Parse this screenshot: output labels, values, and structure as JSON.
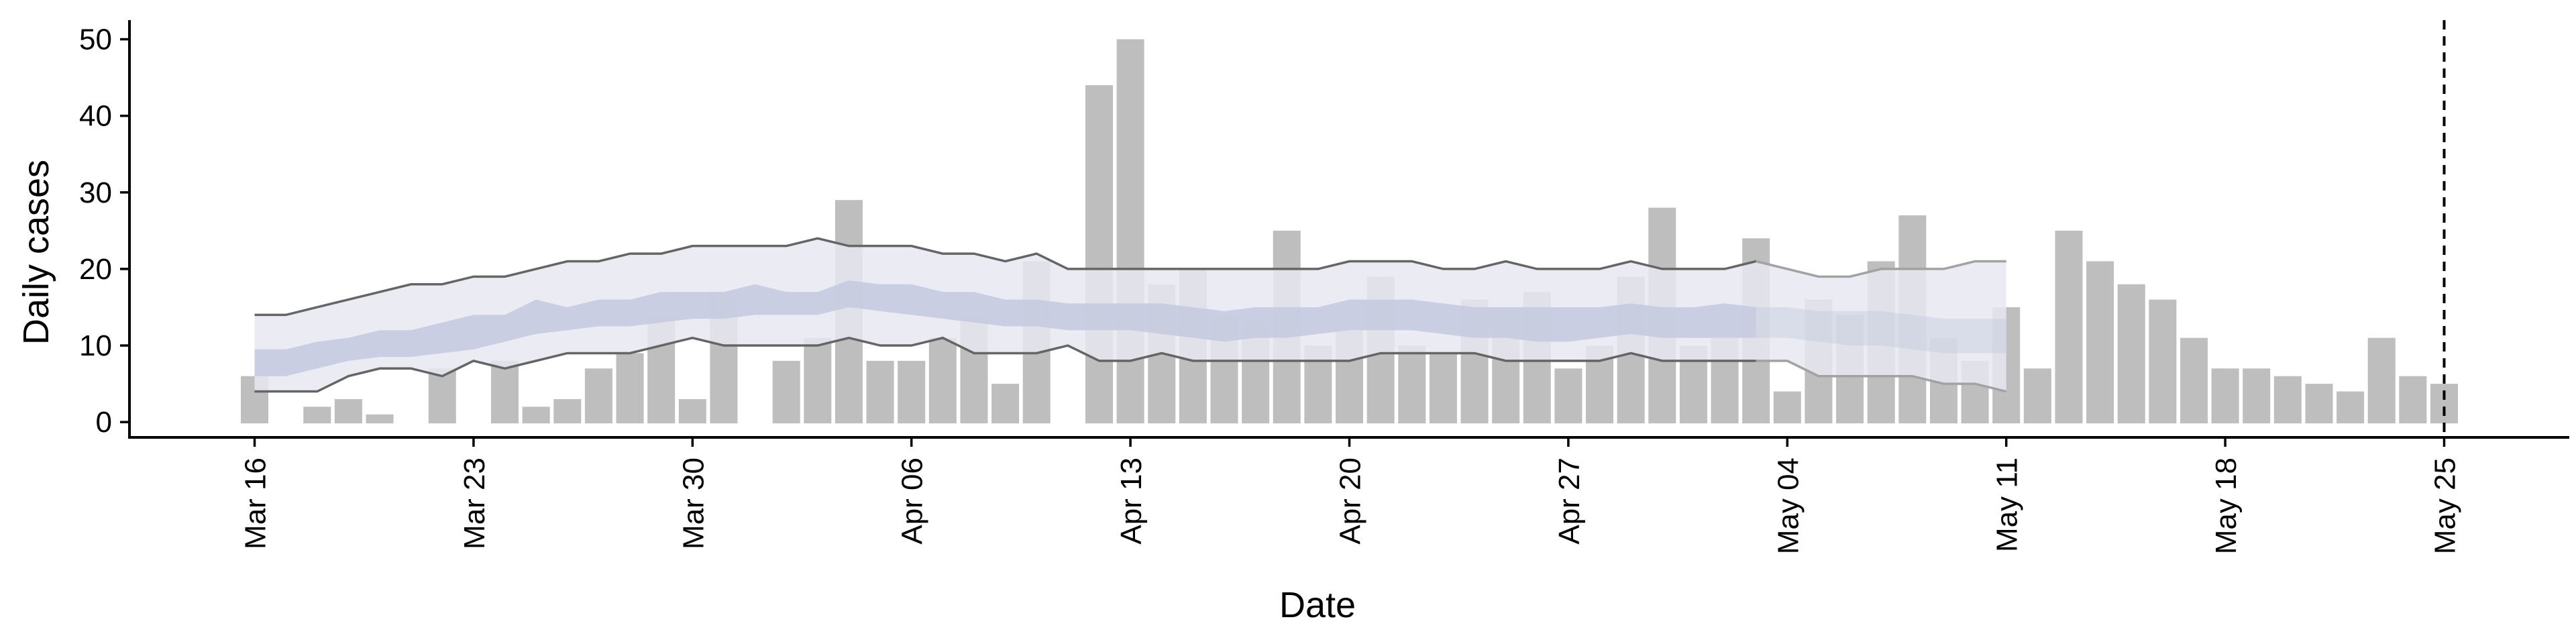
{
  "chart_data": {
    "type": "bar",
    "xlabel": "Date",
    "ylabel": "Daily cases",
    "ylim": [
      -2,
      52.5
    ],
    "yticks": [
      0,
      10,
      20,
      30,
      40,
      50
    ],
    "x_tick_labels": [
      "Mar 16",
      "Mar 23",
      "Mar 30",
      "Apr 06",
      "Apr 13",
      "Apr 20",
      "Apr 27",
      "May 04",
      "May 11",
      "May 18",
      "May 25"
    ],
    "x_tick_days": [
      0,
      7,
      14,
      21,
      28,
      35,
      42,
      49,
      56,
      63,
      70
    ],
    "x_range_days": [
      -4,
      74
    ],
    "date_start": "Mar 16",
    "bar_values": [
      6,
      0,
      2,
      3,
      1,
      0,
      7,
      0,
      8,
      2,
      3,
      7,
      9,
      14,
      3,
      17,
      0,
      8,
      11,
      29,
      8,
      8,
      11,
      14,
      5,
      21,
      0,
      44,
      50,
      18,
      20,
      14,
      13,
      25,
      10,
      12,
      19,
      10,
      9,
      16,
      15,
      17,
      7,
      10,
      19,
      28,
      10,
      11,
      24,
      4,
      16,
      14,
      21,
      27,
      11,
      8,
      15,
      7,
      25,
      21,
      18,
      16,
      11,
      7,
      7,
      6,
      5,
      4,
      11,
      6,
      5
    ],
    "forecast": {
      "days": [
        0,
        1,
        2,
        3,
        4,
        5,
        6,
        7,
        8,
        9,
        10,
        11,
        12,
        13,
        14,
        15,
        16,
        17,
        18,
        19,
        20,
        21,
        22,
        23,
        24,
        25,
        26,
        27,
        28,
        29,
        30,
        31,
        32,
        33,
        34,
        35,
        36,
        37,
        38,
        39,
        40,
        41,
        42,
        43,
        44,
        45,
        46,
        47,
        48,
        49,
        50,
        51,
        52,
        53,
        54,
        55,
        56
      ],
      "upper": [
        14,
        14,
        15,
        16,
        17,
        18,
        18,
        19,
        19,
        20,
        21,
        21,
        22,
        22,
        23,
        23,
        23,
        23,
        24,
        23,
        23,
        23,
        22,
        22,
        21,
        22,
        20,
        20,
        20,
        20,
        20,
        20,
        20,
        20,
        20,
        21,
        21,
        21,
        20,
        20,
        21,
        20,
        20,
        20,
        21,
        20,
        20,
        20,
        21,
        20,
        19,
        19,
        20,
        20,
        20,
        21,
        21
      ],
      "inner_upper": [
        9.5,
        9.5,
        10.5,
        11,
        12,
        12,
        13,
        14,
        14,
        16,
        15,
        16,
        16,
        17,
        17,
        17,
        18,
        17,
        17,
        18.5,
        18,
        18,
        17,
        17,
        16,
        16,
        15.5,
        15.5,
        15.5,
        15.5,
        15,
        14.5,
        15,
        15,
        15,
        16,
        16,
        16,
        15.5,
        15,
        15,
        15,
        15,
        15,
        15.5,
        15,
        15,
        15.5,
        15,
        15,
        14.5,
        14.5,
        14.5,
        14,
        13.5,
        13.5,
        13.5
      ],
      "inner_lower": [
        6,
        6,
        7,
        8,
        8.5,
        8.5,
        9,
        9.5,
        10.5,
        11.5,
        12,
        12.5,
        12.5,
        13,
        13.5,
        13.5,
        14,
        14,
        14,
        15,
        14.5,
        14,
        13.5,
        13,
        12.5,
        12.5,
        12,
        12,
        12,
        11.5,
        11,
        10.5,
        11,
        11,
        11.5,
        12,
        12,
        12,
        11.5,
        11,
        11,
        10.5,
        10.5,
        11,
        11.5,
        11,
        11,
        11,
        11,
        11,
        10.5,
        10,
        10,
        9.5,
        9,
        9,
        9
      ],
      "lower": [
        4,
        4,
        4,
        6,
        7,
        7,
        6,
        8,
        7,
        8,
        9,
        9,
        9,
        10,
        11,
        10,
        10,
        10,
        10,
        11,
        10,
        10,
        11,
        9,
        9,
        9,
        10,
        8,
        8,
        9,
        8,
        8,
        8,
        8,
        8,
        8,
        9,
        9,
        9,
        9,
        8,
        8,
        8,
        8,
        9,
        8,
        8,
        8,
        8,
        8,
        6,
        6,
        6,
        6,
        5,
        5,
        4
      ],
      "band_split_day": 48
    },
    "vline_day": 70,
    "grid": false,
    "colors": {
      "bar": "#bebebe",
      "band_outer": "#e7e9f1",
      "band_inner": "#c3c9de",
      "line_dark": "#656565",
      "line_light": "#a2a2a2",
      "axis": "#000000",
      "vline": "#000000"
    }
  }
}
